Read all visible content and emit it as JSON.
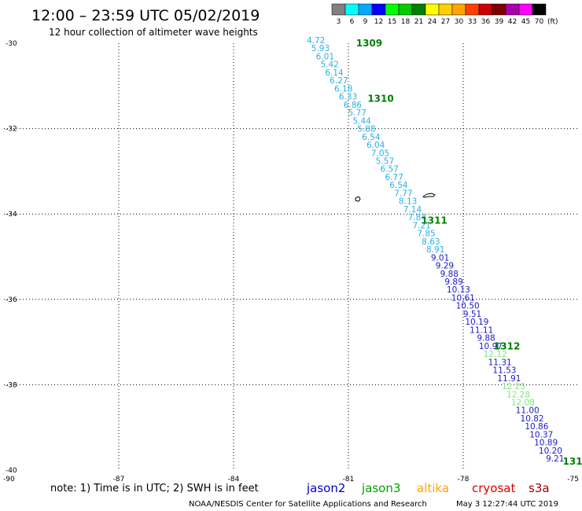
{
  "title": "12:00 – 23:59 UTC 05/02/2019",
  "subtitle": "12 hour collection of altimeter wave heights",
  "legend": {
    "unit": "(ft)",
    "bins": [
      {
        "label": "3",
        "color": "#808080"
      },
      {
        "label": "6",
        "color": "#00ffff"
      },
      {
        "label": "9",
        "color": "#00aaff"
      },
      {
        "label": "12",
        "color": "#0000ff"
      },
      {
        "label": "15",
        "color": "#00ff00"
      },
      {
        "label": "18",
        "color": "#00cc00"
      },
      {
        "label": "21",
        "color": "#008000"
      },
      {
        "label": "24",
        "color": "#ffff00"
      },
      {
        "label": "27",
        "color": "#ffd000"
      },
      {
        "label": "30",
        "color": "#ffa500"
      },
      {
        "label": "33",
        "color": "#ff4000"
      },
      {
        "label": "36",
        "color": "#cc0000"
      },
      {
        "label": "39",
        "color": "#800000"
      },
      {
        "label": "42",
        "color": "#aa00aa"
      },
      {
        "label": "45",
        "color": "#ff00ff"
      },
      {
        "label": "70",
        "color": "#000000"
      }
    ]
  },
  "axes": {
    "lon_ticks": [
      "-90",
      "-87",
      "-84",
      "-81",
      "-78",
      "-75"
    ],
    "lat_ticks": [
      "-30",
      "-32",
      "-34",
      "-36",
      "-38",
      "-40"
    ]
  },
  "time_labels": [
    {
      "text": "1309",
      "lat": -30.0,
      "lon": -80.8
    },
    {
      "text": "1310",
      "lat": -31.3,
      "lon": -80.5
    },
    {
      "text": "1311",
      "lat": -34.15,
      "lon": -79.1
    },
    {
      "text": "1312",
      "lat": -37.1,
      "lon": -77.2
    },
    {
      "text": "131",
      "lat": -39.8,
      "lon": -75.4
    }
  ],
  "track_colors": {
    "light": "#2ab0e8",
    "dark": "#1a1acc",
    "green": "#7ee87e"
  },
  "track": [
    {
      "v": "4.72",
      "c": "light"
    },
    {
      "v": "5.93",
      "c": "light"
    },
    {
      "v": "6.01",
      "c": "light"
    },
    {
      "v": "5.42",
      "c": "light"
    },
    {
      "v": "6.14",
      "c": "light"
    },
    {
      "v": "6.27",
      "c": "light"
    },
    {
      "v": "6.18",
      "c": "light"
    },
    {
      "v": "6.33",
      "c": "light"
    },
    {
      "v": "6.86",
      "c": "light"
    },
    {
      "v": "5.77",
      "c": "light"
    },
    {
      "v": "5.44",
      "c": "light"
    },
    {
      "v": "5.88",
      "c": "light"
    },
    {
      "v": "6.54",
      "c": "light"
    },
    {
      "v": "6.04",
      "c": "light"
    },
    {
      "v": "7.05",
      "c": "light"
    },
    {
      "v": "5.57",
      "c": "light"
    },
    {
      "v": "6.57",
      "c": "light"
    },
    {
      "v": "6.77",
      "c": "light"
    },
    {
      "v": "6.54",
      "c": "light"
    },
    {
      "v": "7.77",
      "c": "light"
    },
    {
      "v": "8.13",
      "c": "light"
    },
    {
      "v": "7.14",
      "c": "light"
    },
    {
      "v": "7.84",
      "c": "light"
    },
    {
      "v": "7.21",
      "c": "light"
    },
    {
      "v": "7.85",
      "c": "light"
    },
    {
      "v": "8.63",
      "c": "light"
    },
    {
      "v": "8.91",
      "c": "light"
    },
    {
      "v": "9.01",
      "c": "dark"
    },
    {
      "v": "9.29",
      "c": "dark"
    },
    {
      "v": "9.88",
      "c": "dark"
    },
    {
      "v": "9.89",
      "c": "dark"
    },
    {
      "v": "10.13",
      "c": "dark"
    },
    {
      "v": "10.61",
      "c": "dark"
    },
    {
      "v": "10.50",
      "c": "dark"
    },
    {
      "v": "9.51",
      "c": "dark"
    },
    {
      "v": "10.19",
      "c": "dark"
    },
    {
      "v": "11.11",
      "c": "dark"
    },
    {
      "v": "9.88",
      "c": "dark"
    },
    {
      "v": "10.97",
      "c": "dark"
    },
    {
      "v": "12.12",
      "c": "green"
    },
    {
      "v": "11.31",
      "c": "dark"
    },
    {
      "v": "11.53",
      "c": "dark"
    },
    {
      "v": "11.91",
      "c": "dark"
    },
    {
      "v": "12.25",
      "c": "green"
    },
    {
      "v": "12.28",
      "c": "green"
    },
    {
      "v": "12.08",
      "c": "green"
    },
    {
      "v": "11.00",
      "c": "dark"
    },
    {
      "v": "10.82",
      "c": "dark"
    },
    {
      "v": "10.86",
      "c": "dark"
    },
    {
      "v": "10.37",
      "c": "dark"
    },
    {
      "v": "10.89",
      "c": "dark"
    },
    {
      "v": "10.20",
      "c": "dark"
    },
    {
      "v": "9.21",
      "c": "dark"
    }
  ],
  "track_path": {
    "start": {
      "lat": -30.0,
      "lon": -81.85
    },
    "end": {
      "lat": -39.8,
      "lon": -75.6
    }
  },
  "note": "note: 1) Time is in UTC; 2) SWH is in feet",
  "satellites": [
    {
      "name": "jason2",
      "color": "#0000cc"
    },
    {
      "name": "jason3",
      "color": "#00a000"
    },
    {
      "name": "altika",
      "color": "#ffa500"
    },
    {
      "name": "cryosat",
      "color": "#dd0000"
    },
    {
      "name": "s3a",
      "color": "#990000"
    }
  ],
  "footer_left": "NOAA/NESDIS Center for Satellite Applications and Research",
  "footer_right": "May  3 12:27:44 UTC 2019"
}
